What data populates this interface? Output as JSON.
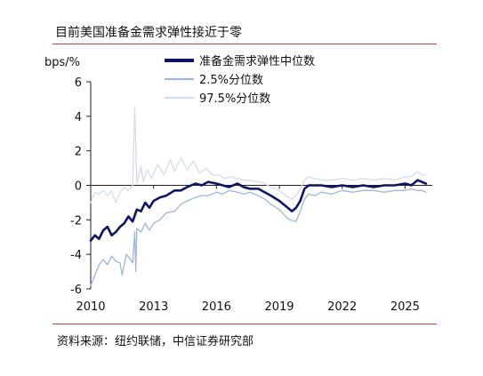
{
  "title": "目前美国准备金需求弹性接近于零",
  "source": "资料来源：纽约联储，中信证券研究部",
  "colors": {
    "median": "#0e1466",
    "p2_5": "#9fb6d8",
    "p97_5": "#d3ddee",
    "rule": "#c9423c"
  },
  "chart_data": {
    "type": "line",
    "ylabel": "bps/%",
    "ylim": [
      -6,
      6
    ],
    "xlim": [
      2010.0,
      2026.3
    ],
    "yticks": [
      -6,
      -4,
      -2,
      0,
      2,
      4,
      6
    ],
    "xticks": [
      {
        "value": 2010,
        "label": "2010"
      },
      {
        "value": 2013,
        "label": "2013"
      },
      {
        "value": 2016,
        "label": "2016"
      },
      {
        "value": 2019,
        "label": "2019"
      },
      {
        "value": 2022,
        "label": "2022"
      },
      {
        "value": 2025,
        "label": "2025"
      }
    ],
    "legend_position": "top",
    "series": [
      {
        "name": "准备金需求弹性中位数",
        "color_key": "median",
        "points": [
          [
            2010.0,
            -3.2
          ],
          [
            2010.2,
            -2.9
          ],
          [
            2010.4,
            -3.1
          ],
          [
            2010.6,
            -2.6
          ],
          [
            2010.8,
            -2.4
          ],
          [
            2011.0,
            -2.9
          ],
          [
            2011.2,
            -2.7
          ],
          [
            2011.4,
            -2.4
          ],
          [
            2011.6,
            -2.2
          ],
          [
            2011.8,
            -1.8
          ],
          [
            2012.0,
            -2.1
          ],
          [
            2012.2,
            -1.4
          ],
          [
            2012.4,
            -1.5
          ],
          [
            2012.6,
            -1.0
          ],
          [
            2012.8,
            -1.3
          ],
          [
            2013.0,
            -0.9
          ],
          [
            2013.3,
            -0.7
          ],
          [
            2013.6,
            -0.6
          ],
          [
            2014.0,
            -0.3
          ],
          [
            2014.3,
            -0.3
          ],
          [
            2014.6,
            -0.1
          ],
          [
            2015.0,
            0.1
          ],
          [
            2015.3,
            0.0
          ],
          [
            2015.6,
            0.2
          ],
          [
            2016.0,
            0.1
          ],
          [
            2016.3,
            0.0
          ],
          [
            2016.6,
            -0.1
          ],
          [
            2017.0,
            0.1
          ],
          [
            2017.3,
            -0.1
          ],
          [
            2017.6,
            -0.2
          ],
          [
            2018.0,
            -0.2
          ],
          [
            2018.3,
            -0.4
          ],
          [
            2018.6,
            -0.6
          ],
          [
            2019.0,
            -0.9
          ],
          [
            2019.3,
            -1.2
          ],
          [
            2019.6,
            -1.5
          ],
          [
            2019.8,
            -1.3
          ],
          [
            2020.0,
            -0.9
          ],
          [
            2020.2,
            -0.2
          ],
          [
            2020.4,
            0.0
          ],
          [
            2020.7,
            0.0
          ],
          [
            2021.0,
            0.0
          ],
          [
            2021.5,
            -0.1
          ],
          [
            2022.0,
            0.0
          ],
          [
            2022.5,
            -0.1
          ],
          [
            2023.0,
            0.0
          ],
          [
            2023.5,
            -0.1
          ],
          [
            2024.0,
            0.0
          ],
          [
            2024.5,
            0.0
          ],
          [
            2025.0,
            0.1
          ],
          [
            2025.3,
            0.0
          ],
          [
            2025.6,
            0.3
          ],
          [
            2025.8,
            0.2
          ],
          [
            2026.0,
            0.1
          ]
        ]
      },
      {
        "name": "2.5%分位数",
        "color_key": "p2_5",
        "points": [
          [
            2010.0,
            -5.8
          ],
          [
            2010.2,
            -5.2
          ],
          [
            2010.4,
            -4.6
          ],
          [
            2010.6,
            -4.3
          ],
          [
            2010.8,
            -4.6
          ],
          [
            2011.0,
            -4.1
          ],
          [
            2011.2,
            -4.4
          ],
          [
            2011.4,
            -4.5
          ],
          [
            2011.5,
            -5.2
          ],
          [
            2011.7,
            -4.0
          ],
          [
            2011.9,
            -4.3
          ],
          [
            2012.0,
            -4.5
          ],
          [
            2012.1,
            -2.7
          ],
          [
            2012.15,
            -5.0
          ],
          [
            2012.2,
            -2.5
          ],
          [
            2012.4,
            -2.7
          ],
          [
            2012.6,
            -2.2
          ],
          [
            2012.8,
            -2.6
          ],
          [
            2013.0,
            -2.2
          ],
          [
            2013.3,
            -2.0
          ],
          [
            2013.6,
            -1.6
          ],
          [
            2014.0,
            -1.5
          ],
          [
            2014.3,
            -1.1
          ],
          [
            2014.6,
            -0.9
          ],
          [
            2015.0,
            -0.7
          ],
          [
            2015.3,
            -0.6
          ],
          [
            2015.6,
            -0.6
          ],
          [
            2016.0,
            -0.4
          ],
          [
            2016.3,
            -0.5
          ],
          [
            2016.6,
            -0.3
          ],
          [
            2017.0,
            -0.4
          ],
          [
            2017.3,
            -0.5
          ],
          [
            2017.6,
            -0.4
          ],
          [
            2018.0,
            -0.6
          ],
          [
            2018.3,
            -0.8
          ],
          [
            2018.6,
            -1.1
          ],
          [
            2019.0,
            -1.4
          ],
          [
            2019.3,
            -1.8
          ],
          [
            2019.5,
            -2.0
          ],
          [
            2019.8,
            -2.1
          ],
          [
            2020.0,
            -1.5
          ],
          [
            2020.2,
            -0.8
          ],
          [
            2020.4,
            -0.5
          ],
          [
            2020.7,
            -0.6
          ],
          [
            2021.0,
            -0.4
          ],
          [
            2021.5,
            -0.5
          ],
          [
            2022.0,
            -0.3
          ],
          [
            2022.5,
            -0.4
          ],
          [
            2023.0,
            -0.3
          ],
          [
            2023.5,
            -0.3
          ],
          [
            2024.0,
            -0.4
          ],
          [
            2024.5,
            -0.3
          ],
          [
            2025.0,
            -0.3
          ],
          [
            2025.3,
            -0.2
          ],
          [
            2025.6,
            -0.3
          ],
          [
            2025.8,
            -0.3
          ],
          [
            2026.0,
            -0.4
          ]
        ]
      },
      {
        "name": "97.5%分位数",
        "color_key": "p97_5",
        "points": [
          [
            2010.0,
            -1.0
          ],
          [
            2010.2,
            -0.4
          ],
          [
            2010.4,
            -0.5
          ],
          [
            2010.6,
            -0.3
          ],
          [
            2010.8,
            -0.6
          ],
          [
            2011.0,
            -0.3
          ],
          [
            2011.2,
            -1.0
          ],
          [
            2011.4,
            -0.4
          ],
          [
            2011.6,
            -0.1
          ],
          [
            2011.8,
            -0.3
          ],
          [
            2012.0,
            0.0
          ],
          [
            2012.1,
            4.5
          ],
          [
            2012.2,
            0.1
          ],
          [
            2012.4,
            1.1
          ],
          [
            2012.5,
            0.2
          ],
          [
            2012.7,
            0.9
          ],
          [
            2012.9,
            0.4
          ],
          [
            2013.2,
            1.2
          ],
          [
            2013.5,
            0.6
          ],
          [
            2013.8,
            1.5
          ],
          [
            2014.0,
            0.8
          ],
          [
            2014.3,
            1.6
          ],
          [
            2014.6,
            0.9
          ],
          [
            2014.9,
            1.4
          ],
          [
            2015.2,
            0.7
          ],
          [
            2015.5,
            1.0
          ],
          [
            2015.8,
            0.6
          ],
          [
            2016.1,
            0.6
          ],
          [
            2016.4,
            0.4
          ],
          [
            2016.7,
            0.5
          ],
          [
            2017.0,
            0.4
          ],
          [
            2017.3,
            0.3
          ],
          [
            2017.6,
            0.3
          ],
          [
            2018.0,
            0.2
          ],
          [
            2018.3,
            0.1
          ],
          [
            2018.6,
            -0.1
          ],
          [
            2019.0,
            -0.3
          ],
          [
            2019.3,
            -0.6
          ],
          [
            2019.6,
            -0.8
          ],
          [
            2019.8,
            -0.6
          ],
          [
            2020.0,
            -0.2
          ],
          [
            2020.2,
            0.3
          ],
          [
            2020.4,
            0.5
          ],
          [
            2020.7,
            0.4
          ],
          [
            2021.0,
            0.3
          ],
          [
            2021.5,
            0.3
          ],
          [
            2022.0,
            0.4
          ],
          [
            2022.5,
            0.3
          ],
          [
            2023.0,
            0.4
          ],
          [
            2023.5,
            0.3
          ],
          [
            2024.0,
            0.4
          ],
          [
            2024.5,
            0.3
          ],
          [
            2025.0,
            0.5
          ],
          [
            2025.3,
            0.5
          ],
          [
            2025.6,
            0.8
          ],
          [
            2025.8,
            0.6
          ],
          [
            2026.0,
            0.6
          ]
        ]
      }
    ]
  }
}
